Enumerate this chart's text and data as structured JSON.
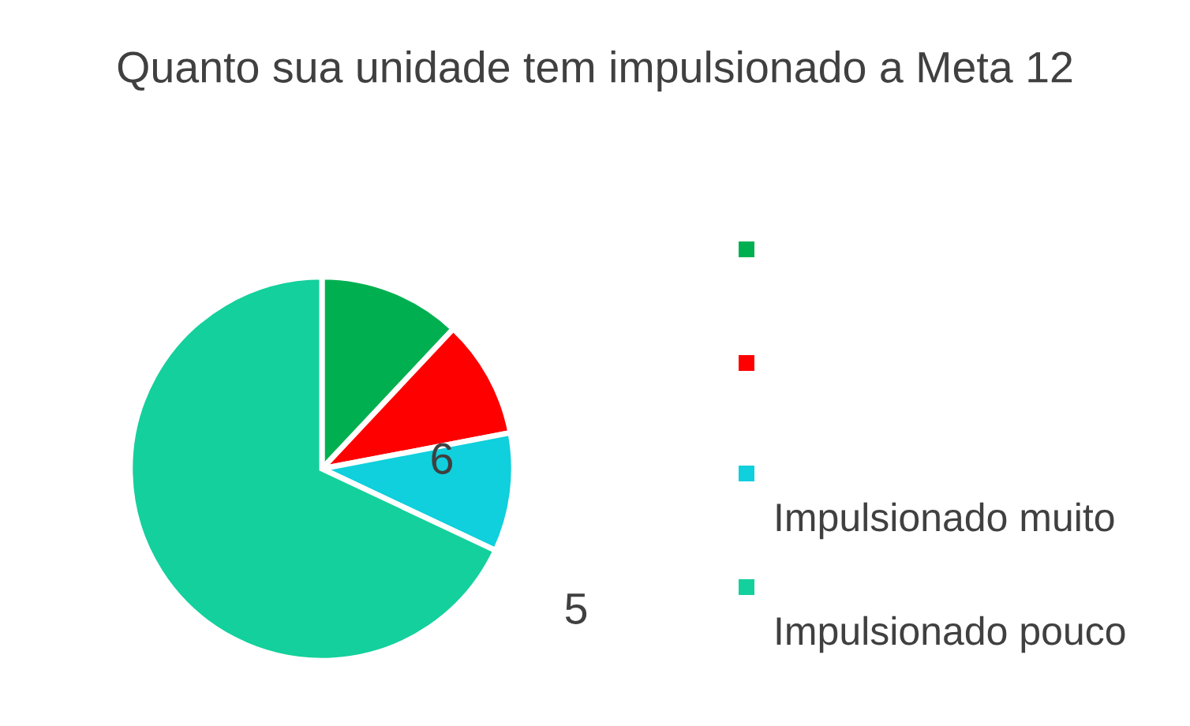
{
  "chart_data": {
    "type": "pie",
    "title": "Quanto sua unidade tem impulsionado a Meta 12",
    "categories": [
      null,
      null,
      "Impulsionado muito",
      "Impulsionado pouco"
    ],
    "values": [
      12,
      10,
      10,
      68
    ],
    "colors": [
      "#00b050",
      "#ff0000",
      "#0fd0dc",
      "#14d09c"
    ],
    "annotations": [
      "6",
      "5"
    ],
    "legend": "right"
  }
}
